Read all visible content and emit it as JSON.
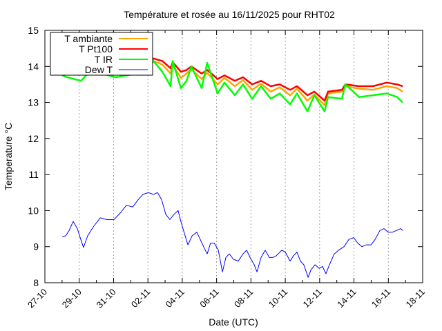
{
  "chart_data": {
    "type": "line",
    "title": "Température et rosée au 16/11/2025 pour RHT02",
    "xlabel": "Date (UTC)",
    "ylabel": "Temperature °C",
    "xlim": [
      0,
      22
    ],
    "ylim": [
      8,
      15
    ],
    "x_unit": "days since 27-10",
    "xticks": [
      {
        "v": 0,
        "label": "27-10"
      },
      {
        "v": 2,
        "label": "29-10"
      },
      {
        "v": 4,
        "label": "31-10"
      },
      {
        "v": 6,
        "label": "02-11"
      },
      {
        "v": 8,
        "label": "04-11"
      },
      {
        "v": 10,
        "label": "06-11"
      },
      {
        "v": 12,
        "label": "08-11"
      },
      {
        "v": 14,
        "label": "10-11"
      },
      {
        "v": 16,
        "label": "12-11"
      },
      {
        "v": 18,
        "label": "14-11"
      },
      {
        "v": 20,
        "label": "16-11"
      },
      {
        "v": 22,
        "label": "18-11"
      }
    ],
    "yticks": [
      8,
      9,
      10,
      11,
      12,
      13,
      14,
      15
    ],
    "grid": "vertical dotted",
    "legend": "top-left",
    "series": [
      {
        "name": "T ambiante",
        "color": "#ffa500",
        "points": [
          [
            1.01,
            13.88
          ],
          [
            5.43,
            13.92
          ],
          [
            6.03,
            13.95
          ],
          [
            6.32,
            14.15
          ],
          [
            6.84,
            14.05
          ],
          [
            7.32,
            13.8
          ],
          [
            7.44,
            14.05
          ],
          [
            7.92,
            13.68
          ],
          [
            8.25,
            13.8
          ],
          [
            8.53,
            13.92
          ],
          [
            9.13,
            13.65
          ],
          [
            9.45,
            13.82
          ],
          [
            10.06,
            13.5
          ],
          [
            10.46,
            13.68
          ],
          [
            11.06,
            13.45
          ],
          [
            11.54,
            13.62
          ],
          [
            12.07,
            13.35
          ],
          [
            12.59,
            13.52
          ],
          [
            13.15,
            13.3
          ],
          [
            13.68,
            13.42
          ],
          [
            14.28,
            13.2
          ],
          [
            14.68,
            13.38
          ],
          [
            15.29,
            13.05
          ],
          [
            15.69,
            13.22
          ],
          [
            16.29,
            12.92
          ],
          [
            16.49,
            13.25
          ],
          [
            17.3,
            13.3
          ],
          [
            17.5,
            13.45
          ],
          [
            18.3,
            13.38
          ],
          [
            19.11,
            13.35
          ],
          [
            19.91,
            13.45
          ],
          [
            20.51,
            13.4
          ],
          [
            20.84,
            13.3
          ]
        ]
      },
      {
        "name": "T Pt100",
        "color": "#ff0000",
        "points": [
          [
            1.01,
            13.95
          ],
          [
            5.43,
            14.0
          ],
          [
            6.03,
            14.05
          ],
          [
            6.32,
            14.22
          ],
          [
            6.84,
            14.15
          ],
          [
            7.32,
            13.95
          ],
          [
            7.44,
            14.12
          ],
          [
            7.92,
            13.85
          ],
          [
            8.25,
            13.9
          ],
          [
            8.53,
            14.0
          ],
          [
            9.13,
            13.8
          ],
          [
            9.45,
            13.9
          ],
          [
            10.06,
            13.65
          ],
          [
            10.46,
            13.75
          ],
          [
            11.06,
            13.6
          ],
          [
            11.54,
            13.7
          ],
          [
            12.07,
            13.5
          ],
          [
            12.59,
            13.6
          ],
          [
            13.15,
            13.45
          ],
          [
            13.68,
            13.5
          ],
          [
            14.28,
            13.35
          ],
          [
            14.68,
            13.45
          ],
          [
            15.29,
            13.2
          ],
          [
            15.69,
            13.3
          ],
          [
            16.29,
            13.05
          ],
          [
            16.49,
            13.3
          ],
          [
            17.3,
            13.35
          ],
          [
            17.5,
            13.5
          ],
          [
            18.3,
            13.45
          ],
          [
            19.11,
            13.45
          ],
          [
            19.91,
            13.55
          ],
          [
            20.51,
            13.5
          ],
          [
            20.84,
            13.45
          ]
        ]
      },
      {
        "name": "T IR",
        "color": "#00ff00",
        "points": [
          [
            1.01,
            13.75
          ],
          [
            1.3,
            13.7
          ],
          [
            2.1,
            13.6
          ],
          [
            2.5,
            13.8
          ],
          [
            3.5,
            13.78
          ],
          [
            4.1,
            13.7
          ],
          [
            5.43,
            13.8
          ],
          [
            6.03,
            13.85
          ],
          [
            6.32,
            14.15
          ],
          [
            6.84,
            13.85
          ],
          [
            7.32,
            13.45
          ],
          [
            7.44,
            14.15
          ],
          [
            7.92,
            13.4
          ],
          [
            8.25,
            13.6
          ],
          [
            8.53,
            14.0
          ],
          [
            9.13,
            13.4
          ],
          [
            9.45,
            14.1
          ],
          [
            10.06,
            13.25
          ],
          [
            10.46,
            13.55
          ],
          [
            11.06,
            13.2
          ],
          [
            11.54,
            13.5
          ],
          [
            12.07,
            13.1
          ],
          [
            12.59,
            13.45
          ],
          [
            13.15,
            13.1
          ],
          [
            13.68,
            13.25
          ],
          [
            14.28,
            12.95
          ],
          [
            14.68,
            13.25
          ],
          [
            15.29,
            12.75
          ],
          [
            15.69,
            13.2
          ],
          [
            16.29,
            12.75
          ],
          [
            16.49,
            13.15
          ],
          [
            17.3,
            13.1
          ],
          [
            17.5,
            13.5
          ],
          [
            18.3,
            13.15
          ],
          [
            19.11,
            13.2
          ],
          [
            19.91,
            13.25
          ],
          [
            20.51,
            13.15
          ],
          [
            20.84,
            13.0
          ]
        ]
      },
      {
        "name": "Dew T",
        "color": "#0000ff",
        "points": [
          [
            1.01,
            9.28
          ],
          [
            1.21,
            9.3
          ],
          [
            1.41,
            9.45
          ],
          [
            1.65,
            9.7
          ],
          [
            1.89,
            9.5
          ],
          [
            2.09,
            9.2
          ],
          [
            2.25,
            8.98
          ],
          [
            2.49,
            9.3
          ],
          [
            2.82,
            9.55
          ],
          [
            3.22,
            9.8
          ],
          [
            3.62,
            9.75
          ],
          [
            4.02,
            9.75
          ],
          [
            4.42,
            9.95
          ],
          [
            4.75,
            10.15
          ],
          [
            5.11,
            10.1
          ],
          [
            5.43,
            10.3
          ],
          [
            5.71,
            10.45
          ],
          [
            6.03,
            10.5
          ],
          [
            6.32,
            10.45
          ],
          [
            6.56,
            10.5
          ],
          [
            6.8,
            10.3
          ],
          [
            7.04,
            9.9
          ],
          [
            7.28,
            9.75
          ],
          [
            7.52,
            9.9
          ],
          [
            7.76,
            10.0
          ],
          [
            7.92,
            9.7
          ],
          [
            8.17,
            9.3
          ],
          [
            8.33,
            9.05
          ],
          [
            8.57,
            9.3
          ],
          [
            8.85,
            9.4
          ],
          [
            9.05,
            9.2
          ],
          [
            9.29,
            8.95
          ],
          [
            9.45,
            8.8
          ],
          [
            9.65,
            9.1
          ],
          [
            9.86,
            9.1
          ],
          [
            10.1,
            8.9
          ],
          [
            10.34,
            8.3
          ],
          [
            10.54,
            8.7
          ],
          [
            10.74,
            8.8
          ],
          [
            10.98,
            8.65
          ],
          [
            11.26,
            8.6
          ],
          [
            11.54,
            8.8
          ],
          [
            11.75,
            8.9
          ],
          [
            11.95,
            8.7
          ],
          [
            12.19,
            8.5
          ],
          [
            12.35,
            8.3
          ],
          [
            12.59,
            8.7
          ],
          [
            12.83,
            8.9
          ],
          [
            13.07,
            8.7
          ],
          [
            13.27,
            8.7
          ],
          [
            13.48,
            8.75
          ],
          [
            13.8,
            8.9
          ],
          [
            14.0,
            8.85
          ],
          [
            14.28,
            8.6
          ],
          [
            14.48,
            8.75
          ],
          [
            14.68,
            8.85
          ],
          [
            14.88,
            8.6
          ],
          [
            15.08,
            8.5
          ],
          [
            15.33,
            8.15
          ],
          [
            15.49,
            8.35
          ],
          [
            15.73,
            8.5
          ],
          [
            15.97,
            8.4
          ],
          [
            16.17,
            8.45
          ],
          [
            16.37,
            8.25
          ],
          [
            16.57,
            8.5
          ],
          [
            16.85,
            8.8
          ],
          [
            17.1,
            8.9
          ],
          [
            17.42,
            9.0
          ],
          [
            17.7,
            9.2
          ],
          [
            17.98,
            9.25
          ],
          [
            18.22,
            9.1
          ],
          [
            18.46,
            9.0
          ],
          [
            18.71,
            9.05
          ],
          [
            18.99,
            9.05
          ],
          [
            19.23,
            9.2
          ],
          [
            19.51,
            9.45
          ],
          [
            19.75,
            9.5
          ],
          [
            19.99,
            9.4
          ],
          [
            20.23,
            9.4
          ],
          [
            20.47,
            9.45
          ],
          [
            20.72,
            9.5
          ],
          [
            20.84,
            9.45
          ]
        ]
      }
    ]
  }
}
